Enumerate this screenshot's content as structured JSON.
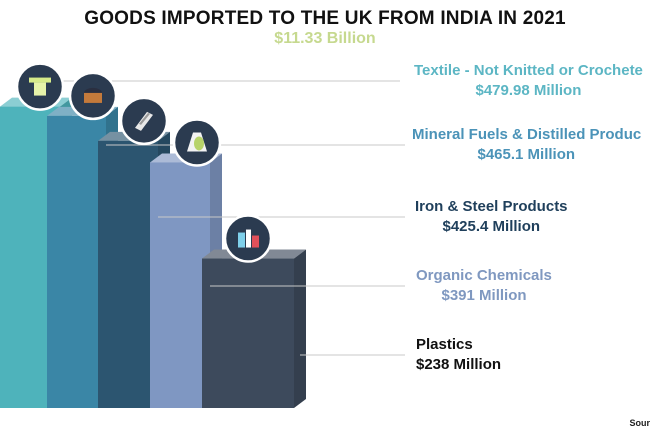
{
  "title": "GOODS IMPORTED TO THE UK FROM INDIA IN 2021",
  "total": "$11.33 Billion",
  "source": "Sour",
  "chart_data": {
    "type": "bar",
    "title": "GOODS IMPORTED TO THE UK FROM INDIA IN 2021",
    "subtitle": "$11.33 Billion",
    "categories": [
      "Textile - Not Knitted or Crochete",
      "Mineral Fuels & Distilled Produc",
      "Iron & Steel Products",
      "Organic Chemicals",
      "Plastics"
    ],
    "values": [
      479.98,
      465.1,
      425.4,
      391,
      238
    ],
    "value_labels": [
      "$479.98 Million",
      "$465.1 Million",
      "$425.4 Million",
      "$391 Million",
      "$238 Million"
    ],
    "unit": "Million USD",
    "colors": [
      "#4eb3bb",
      "#3a86a6",
      "#2c5570",
      "#7f97c2",
      "#3d4a5c"
    ],
    "label_colors": [
      "#5cb6c4",
      "#4b93b8",
      "#1f3f5b",
      "#7f98c0",
      "#111111"
    ],
    "icons": [
      "textile-icon",
      "fuel-icon",
      "steel-icon",
      "chemical-icon",
      "plastic-icon"
    ]
  }
}
